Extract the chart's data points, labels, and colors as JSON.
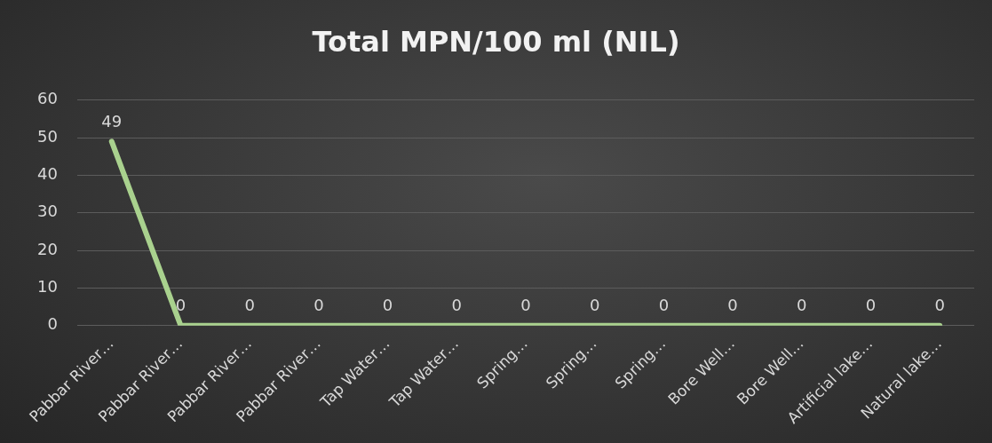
{
  "chart_data": {
    "type": "line",
    "title": "Total MPN/100 ml (NIL)",
    "categories": [
      "Pabbar River…",
      "Pabbar River…",
      "Pabbar River…",
      "Pabbar River…",
      "Tap Water…",
      "Tap Water…",
      "Spring…",
      "Spring…",
      "Spring…",
      "Bore Well…",
      "Bore Well…",
      "Artificial lake…",
      "Natural lake…"
    ],
    "series": [
      {
        "color": "#a9d18e",
        "values": [
          49,
          0,
          0,
          0,
          0,
          0,
          0,
          0,
          0,
          0,
          0,
          0,
          0
        ]
      }
    ],
    "ylim": [
      0,
      60
    ],
    "yticks": [
      0,
      10,
      20,
      30,
      40,
      50,
      60
    ],
    "grid": "y",
    "legend": false,
    "marker": "none",
    "line_style": "solid",
    "data_labels": true
  }
}
